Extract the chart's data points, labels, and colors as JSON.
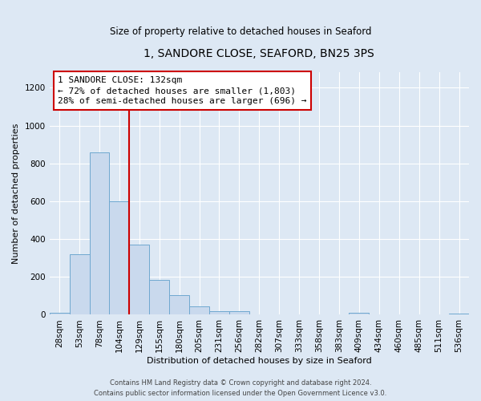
{
  "title": "1, SANDORE CLOSE, SEAFORD, BN25 3PS",
  "subtitle": "Size of property relative to detached houses in Seaford",
  "xlabel": "Distribution of detached houses by size in Seaford",
  "ylabel": "Number of detached properties",
  "bin_labels": [
    "28sqm",
    "53sqm",
    "78sqm",
    "104sqm",
    "129sqm",
    "155sqm",
    "180sqm",
    "205sqm",
    "231sqm",
    "256sqm",
    "282sqm",
    "307sqm",
    "333sqm",
    "358sqm",
    "383sqm",
    "409sqm",
    "434sqm",
    "460sqm",
    "485sqm",
    "511sqm",
    "536sqm"
  ],
  "bar_values": [
    10,
    320,
    860,
    600,
    370,
    185,
    105,
    45,
    20,
    20,
    0,
    0,
    0,
    0,
    0,
    10,
    0,
    0,
    0,
    0,
    5
  ],
  "bar_color": "#c9d9ed",
  "bar_edge_color": "#6fa8d0",
  "vline_x_index": 4,
  "vline_color": "#cc0000",
  "ylim": [
    0,
    1280
  ],
  "yticks": [
    0,
    200,
    400,
    600,
    800,
    1000,
    1200
  ],
  "annotation_title": "1 SANDORE CLOSE: 132sqm",
  "annotation_line1": "← 72% of detached houses are smaller (1,803)",
  "annotation_line2": "28% of semi-detached houses are larger (696) →",
  "annotation_box_facecolor": "#ffffff",
  "annotation_box_edgecolor": "#cc0000",
  "footer_line1": "Contains HM Land Registry data © Crown copyright and database right 2024.",
  "footer_line2": "Contains public sector information licensed under the Open Government Licence v3.0.",
  "fig_facecolor": "#dde8f4",
  "plot_facecolor": "#dde8f4",
  "grid_color": "#ffffff",
  "title_fontsize": 10,
  "subtitle_fontsize": 8.5,
  "axis_label_fontsize": 8,
  "tick_fontsize": 7.5,
  "annotation_fontsize": 8,
  "footer_fontsize": 6
}
